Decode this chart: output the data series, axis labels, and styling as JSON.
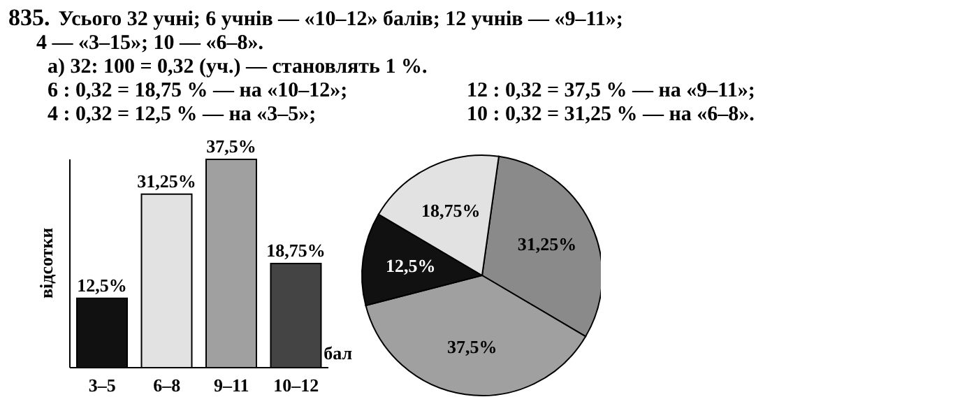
{
  "chart_data": [
    {
      "type": "bar",
      "title": "835.",
      "annotations": [
        "Усього 32 учні; 6 учнів — «10–12» балів; 12 учнів — «9–11»;",
        "4 — «3–15»; 10 — «6–8».",
        "а) 32: 100 = 0,32 (уч.) — становлять 1 %.",
        "6 : 0,32 = 18,75 % — на «10–12»;",
        "12 : 0,32 = 37,5 % — на «9–11»;",
        "4 : 0,32 = 12,5 % — на «3–5»;",
        "10 : 0,32 = 31,25 % — на «6–8»."
      ],
      "categories": [
        "3–5",
        "6–8",
        "9–11",
        "10–12"
      ],
      "values": [
        12.5,
        31.25,
        37.5,
        18.75
      ],
      "colors": [
        "#111111",
        "#e2e2e2",
        "#a0a0a0",
        "#444444"
      ],
      "value_labels": [
        "12,5%",
        "31,25%",
        "37,5%",
        "18,75%"
      ],
      "xlabel": "бал",
      "ylabel": "відсотки",
      "grid": false,
      "legend": false
    },
    {
      "type": "pie",
      "categories": [
        null,
        null,
        null,
        null
      ],
      "values": [
        31.25,
        37.5,
        12.5,
        18.75
      ],
      "colors": [
        "#8a8a8a",
        "#a0a0a0",
        "#111111",
        "#e2e2e2"
      ],
      "value_labels": [
        "31,25%",
        "37,5%",
        "12,5%",
        "18,75%"
      ],
      "legend": false
    }
  ]
}
